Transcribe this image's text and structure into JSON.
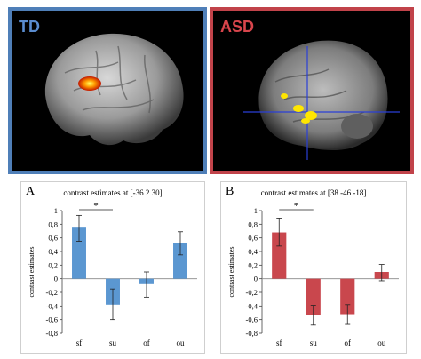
{
  "panels": {
    "td_label": "TD",
    "asd_label": "ASD"
  },
  "colors": {
    "td_border": "#4f7fb8",
    "asd_border": "#c1434a",
    "td_bar": "#5b97d1",
    "asd_bar": "#c9474d"
  },
  "chart_data": [
    {
      "type": "bar",
      "panel_label": "A",
      "title": "contrast estimates at [-36 2 30]",
      "xlabel": "",
      "ylabel": "contrast estimates",
      "categories": [
        "sf",
        "su",
        "of",
        "ou"
      ],
      "values": [
        0.75,
        -0.38,
        -0.08,
        0.52
      ],
      "error_low": [
        0.55,
        -0.6,
        -0.27,
        0.35
      ],
      "error_high": [
        0.93,
        -0.15,
        0.1,
        0.69
      ],
      "ylim": [
        -0.8,
        1
      ],
      "yticks": [
        1,
        0.8,
        0.6,
        0.4,
        0.2,
        0,
        -0.2,
        -0.4,
        -0.6,
        -0.8
      ],
      "ytick_labels": [
        "1",
        "0,8",
        "0,6",
        "0,4",
        "0,2",
        "0",
        "-0,2",
        "-0,4",
        "-0,6",
        "-0,8"
      ],
      "significance": {
        "from": "sf",
        "to": "su",
        "label": "*"
      },
      "grid": false,
      "color": "#5b97d1"
    },
    {
      "type": "bar",
      "panel_label": "B",
      "title": "contrast estimates at [38 -46 -18]",
      "xlabel": "",
      "ylabel": "contrast estimates",
      "categories": [
        "sf",
        "su",
        "of",
        "ou"
      ],
      "values": [
        0.68,
        -0.53,
        -0.52,
        0.1
      ],
      "error_low": [
        0.48,
        -0.68,
        -0.67,
        -0.03
      ],
      "error_high": [
        0.89,
        -0.39,
        -0.38,
        0.21
      ],
      "ylim": [
        -0.8,
        1
      ],
      "yticks": [
        1,
        0.8,
        0.6,
        0.4,
        0.2,
        0,
        -0.2,
        -0.4,
        -0.6,
        -0.8
      ],
      "ytick_labels": [
        "1",
        "0,8",
        "0,6",
        "0,4",
        "0,2",
        "0",
        "-0,2",
        "-0,4",
        "-0,6",
        "-0,8"
      ],
      "significance": {
        "from": "sf",
        "to": "su",
        "label": "*"
      },
      "grid": false,
      "color": "#c9474d"
    }
  ]
}
